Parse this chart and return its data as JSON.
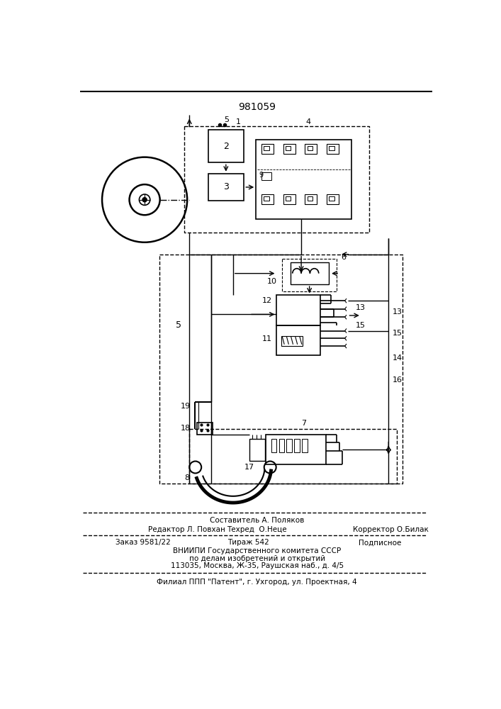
{
  "patent_number": "981059",
  "bg_color": "#ffffff",
  "footer": {
    "sestavitel": "Составитель А. Поляков",
    "redaktor": "Редактор Л. Повхан",
    "tehred": "Техред  О.Неце",
    "korrektor": "Корректор О.Билак",
    "zakaz": "Заказ 9581/22",
    "tirazh": "Тираж 542",
    "podpisnoe": "Подписное",
    "vniipи1": "ВНИИПИ Государственного комитета СССР",
    "vniipи2": "по делам изобретений и открытий",
    "vniipи3": "113035, Москва, Ж-35, Раушская наб., д. 4/5",
    "filial": "Филиал ППП \"Патент\", г. Ухгород, ул. Проектная, 4"
  }
}
